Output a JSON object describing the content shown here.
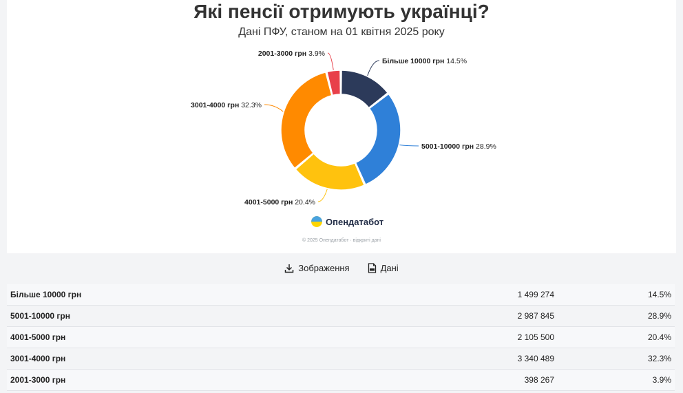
{
  "title": "Які пенсії отримують українці?",
  "subtitle": "Дані ПФУ, станом на 01 квітня 2025 року",
  "logo_text": "Опендатабот",
  "credits": "© 2025 Опендатабот · відкриті дані",
  "toolbar": {
    "image_label": "Зображення",
    "data_label": "Дані"
  },
  "colors": {
    "Більше 10000 грн": "#2c3a5a",
    "5001-10000 грн": "#2f80d8",
    "4001-5000 грн": "#ffc20e",
    "3001-4000 грн": "#ff8a00",
    "2001-3000 грн": "#e8404a"
  },
  "chart_data": {
    "type": "pie",
    "donut": true,
    "title": "Які пенсії отримують українці?",
    "subtitle": "Дані ПФУ, станом на 01 квітня 2025 року",
    "slices": [
      {
        "label": "Більше 10000 грн",
        "value": 14.5
      },
      {
        "label": "5001-10000 грн",
        "value": 28.9
      },
      {
        "label": "4001-5000 грн",
        "value": 20.4
      },
      {
        "label": "3001-4000 грн",
        "value": 32.3
      },
      {
        "label": "2001-3000 грн",
        "value": 3.9
      }
    ]
  },
  "table": {
    "rows": [
      {
        "category": "Більше 10000 грн",
        "count": "1 499 274",
        "percent": "14.5%"
      },
      {
        "category": "5001-10000 грн",
        "count": "2 987 845",
        "percent": "28.9%"
      },
      {
        "category": "4001-5000 грн",
        "count": "2 105 500",
        "percent": "20.4%"
      },
      {
        "category": "3001-4000 грн",
        "count": "3 340 489",
        "percent": "32.3%"
      },
      {
        "category": "2001-3000 грн",
        "count": "398 267",
        "percent": "3.9%"
      }
    ]
  }
}
